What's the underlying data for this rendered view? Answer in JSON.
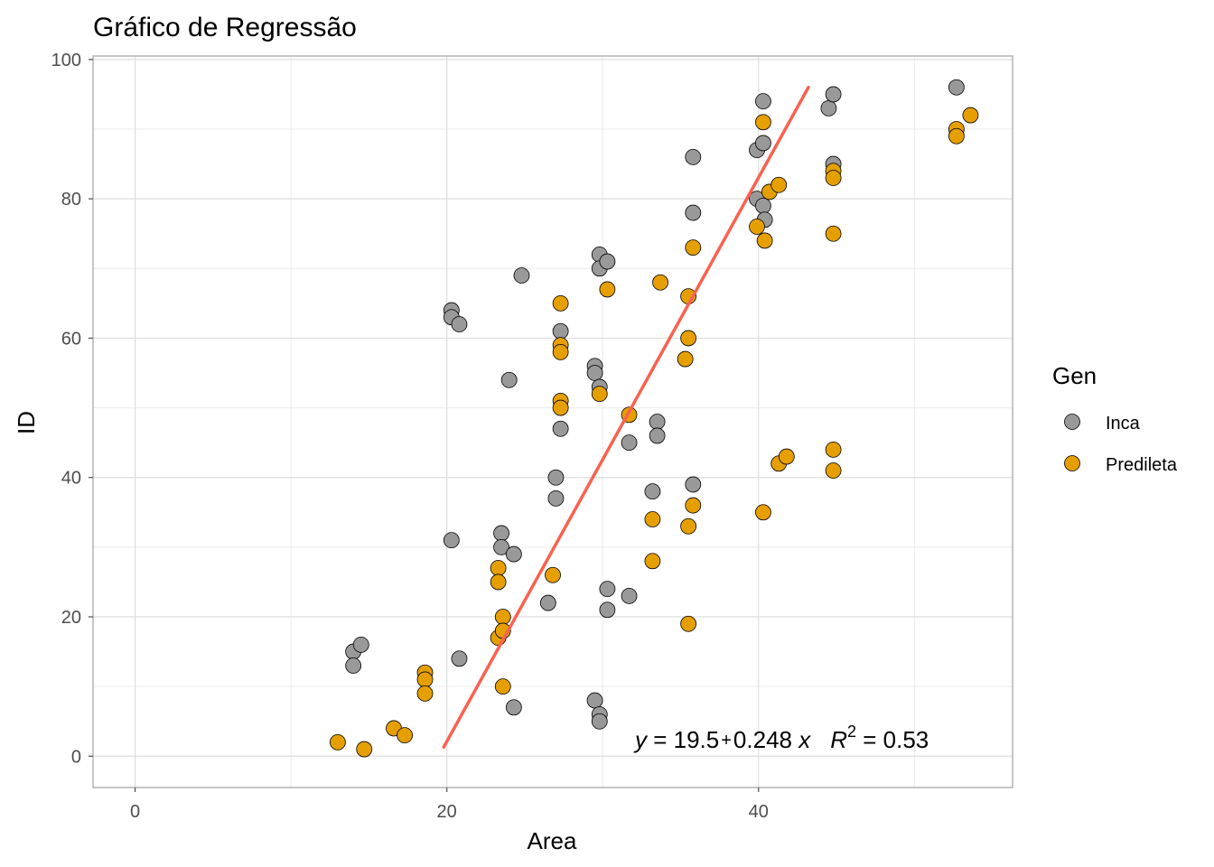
{
  "chart_data": {
    "type": "scatter",
    "title": "Gráfico de Regressão",
    "xlabel": "Area",
    "ylabel": "ID",
    "xlim": [
      -2.7,
      56.3
    ],
    "ylim": [
      -4.5,
      100.5
    ],
    "xticks": [
      0,
      20,
      40
    ],
    "yticks": [
      0,
      20,
      40,
      60,
      80,
      100
    ],
    "grid": true,
    "legend": {
      "title": "Gen",
      "placement": "right"
    },
    "series": [
      {
        "name": "Inca",
        "color": "#999999",
        "points": [
          [
            14.0,
            15
          ],
          [
            14.0,
            13
          ],
          [
            14.5,
            16
          ],
          [
            20.3,
            64
          ],
          [
            20.3,
            63
          ],
          [
            20.3,
            31
          ],
          [
            20.8,
            62
          ],
          [
            20.8,
            14
          ],
          [
            23.5,
            32
          ],
          [
            23.5,
            30
          ],
          [
            24.0,
            54
          ],
          [
            24.3,
            29
          ],
          [
            24.3,
            7
          ],
          [
            24.8,
            69
          ],
          [
            26.5,
            22
          ],
          [
            27.0,
            40
          ],
          [
            27.0,
            37
          ],
          [
            27.3,
            61
          ],
          [
            27.3,
            47
          ],
          [
            29.5,
            56
          ],
          [
            29.5,
            55
          ],
          [
            29.5,
            8
          ],
          [
            29.8,
            72
          ],
          [
            29.8,
            70
          ],
          [
            29.8,
            53
          ],
          [
            29.8,
            6
          ],
          [
            29.8,
            5
          ],
          [
            30.3,
            71
          ],
          [
            30.3,
            24
          ],
          [
            30.3,
            21
          ],
          [
            31.7,
            45
          ],
          [
            31.7,
            23
          ],
          [
            33.2,
            38
          ],
          [
            33.5,
            48
          ],
          [
            33.5,
            46
          ],
          [
            35.8,
            86
          ],
          [
            35.8,
            78
          ],
          [
            35.8,
            39
          ],
          [
            39.9,
            87
          ],
          [
            39.9,
            80
          ],
          [
            40.3,
            94
          ],
          [
            40.3,
            88
          ],
          [
            40.3,
            79
          ],
          [
            40.4,
            77
          ],
          [
            44.5,
            93
          ],
          [
            44.8,
            95
          ],
          [
            44.8,
            85
          ],
          [
            52.7,
            96
          ]
        ]
      },
      {
        "name": "Predileta",
        "color": "#E69F00",
        "points": [
          [
            13.0,
            2
          ],
          [
            14.7,
            1
          ],
          [
            16.6,
            4
          ],
          [
            17.3,
            3
          ],
          [
            18.6,
            12
          ],
          [
            18.6,
            11
          ],
          [
            18.6,
            9
          ],
          [
            23.3,
            27
          ],
          [
            23.3,
            25
          ],
          [
            23.3,
            17
          ],
          [
            23.6,
            20
          ],
          [
            23.6,
            18
          ],
          [
            23.6,
            10
          ],
          [
            26.8,
            26
          ],
          [
            27.3,
            65
          ],
          [
            27.3,
            59
          ],
          [
            27.3,
            58
          ],
          [
            27.3,
            51
          ],
          [
            27.3,
            50
          ],
          [
            29.8,
            52
          ],
          [
            30.3,
            67
          ],
          [
            31.7,
            49
          ],
          [
            33.2,
            34
          ],
          [
            33.2,
            28
          ],
          [
            33.7,
            68
          ],
          [
            35.3,
            57
          ],
          [
            35.5,
            66
          ],
          [
            35.5,
            60
          ],
          [
            35.5,
            33
          ],
          [
            35.5,
            19
          ],
          [
            35.8,
            73
          ],
          [
            35.8,
            36
          ],
          [
            39.9,
            76
          ],
          [
            40.3,
            91
          ],
          [
            40.3,
            35
          ],
          [
            40.4,
            74
          ],
          [
            40.7,
            81
          ],
          [
            41.3,
            82
          ],
          [
            41.3,
            42
          ],
          [
            41.8,
            43
          ],
          [
            44.8,
            84
          ],
          [
            44.8,
            83
          ],
          [
            44.8,
            75
          ],
          [
            44.8,
            44
          ],
          [
            44.8,
            41
          ],
          [
            52.7,
            90
          ],
          [
            52.7,
            89
          ],
          [
            53.6,
            92
          ]
        ]
      }
    ],
    "regression": {
      "intercept": 19.5,
      "slope": 0.248,
      "r2": 0.53,
      "color": "#F8624F",
      "line": [
        [
          19.8,
          1.3
        ],
        [
          43.2,
          96.0
        ]
      ]
    },
    "annotation": {
      "y": "y",
      "eq_part": " = 19.5",
      "plus": "+",
      "slope_part": "0.248 ",
      "x": "x",
      "r": "R",
      "sup": "2",
      "r2_part": " = 0.53"
    }
  }
}
